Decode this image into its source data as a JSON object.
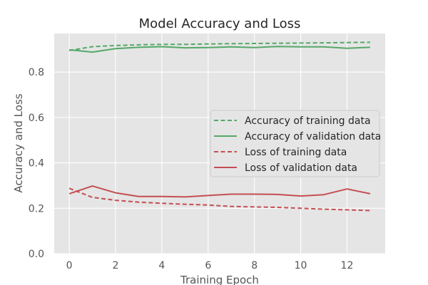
{
  "chart_data": {
    "type": "line",
    "title": "Model Accuracy and Loss",
    "xlabel": "Training Epoch",
    "ylabel": "Accuracy and Loss",
    "xlim": [
      -0.65,
      13.65
    ],
    "ylim": [
      0.0,
      0.97
    ],
    "x_ticks": [
      0,
      2,
      4,
      6,
      8,
      10,
      12
    ],
    "y_ticks": [
      0.0,
      0.2,
      0.4,
      0.6,
      0.8
    ],
    "y_tick_labels": [
      "0.0",
      "0.2",
      "0.4",
      "0.6",
      "0.8"
    ],
    "grid": true,
    "legend_position": "center-right",
    "x": [
      0,
      1,
      2,
      3,
      4,
      5,
      6,
      7,
      8,
      9,
      10,
      11,
      12,
      13
    ],
    "series": [
      {
        "name": "Accuracy of training data",
        "color": "#55a868",
        "style": "dashed",
        "values": [
          0.895,
          0.912,
          0.917,
          0.92,
          0.922,
          0.922,
          0.924,
          0.925,
          0.926,
          0.927,
          0.928,
          0.929,
          0.93,
          0.931
        ]
      },
      {
        "name": "Accuracy of validation data",
        "color": "#55a868",
        "style": "solid",
        "values": [
          0.898,
          0.888,
          0.903,
          0.909,
          0.912,
          0.907,
          0.908,
          0.911,
          0.908,
          0.913,
          0.911,
          0.911,
          0.905,
          0.909
        ]
      },
      {
        "name": "Loss of training data",
        "color": "#c44e52",
        "style": "dashed",
        "values": [
          0.288,
          0.248,
          0.235,
          0.227,
          0.222,
          0.218,
          0.214,
          0.208,
          0.206,
          0.204,
          0.2,
          0.196,
          0.193,
          0.19
        ]
      },
      {
        "name": "Loss of validation data",
        "color": "#c44e52",
        "style": "solid",
        "values": [
          0.264,
          0.298,
          0.268,
          0.252,
          0.252,
          0.25,
          0.256,
          0.262,
          0.262,
          0.261,
          0.254,
          0.26,
          0.285,
          0.264
        ]
      }
    ]
  },
  "colors": {
    "plot_background": "#e5e5e5",
    "grid": "#ffffff",
    "text": "#555555",
    "title_text": "#262626"
  }
}
